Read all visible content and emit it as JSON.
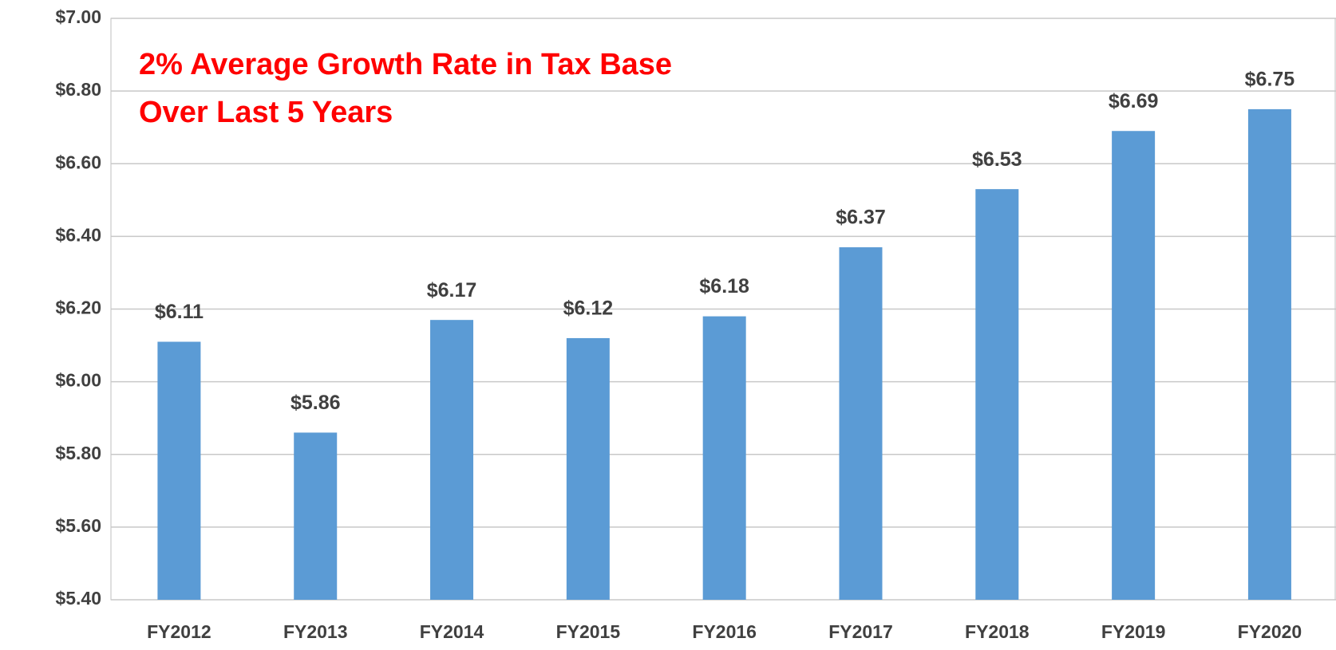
{
  "chart_data": {
    "type": "bar",
    "annotations": [
      "2% Average Growth Rate in Tax Base",
      "Over Last 5 Years"
    ],
    "categories": [
      "FY2012",
      "FY2013",
      "FY2014",
      "FY2015",
      "FY2016",
      "FY2017",
      "FY2018",
      "FY2019",
      "FY2020"
    ],
    "values": [
      6.11,
      5.86,
      6.17,
      6.12,
      6.18,
      6.37,
      6.53,
      6.69,
      6.75
    ],
    "value_labels": [
      "$6.11",
      "$5.86",
      "$6.17",
      "$6.12",
      "$6.18",
      "$6.37",
      "$6.53",
      "$6.69",
      "$6.75"
    ],
    "color": "#5b9bd5",
    "ylim": [
      5.4,
      7.0
    ],
    "yticks": [
      {
        "value": 5.4,
        "label": "$5.40"
      },
      {
        "value": 5.6,
        "label": "$5.60"
      },
      {
        "value": 5.8,
        "label": "$5.80"
      },
      {
        "value": 6.0,
        "label": "$6.00"
      },
      {
        "value": 6.2,
        "label": "$6.20"
      },
      {
        "value": 6.4,
        "label": "$6.40"
      },
      {
        "value": 6.6,
        "label": "$6.60"
      },
      {
        "value": 6.8,
        "label": "$6.80"
      },
      {
        "value": 7.0,
        "label": "$7.00"
      }
    ],
    "grid": true,
    "annotation_color": "#ff0000"
  }
}
